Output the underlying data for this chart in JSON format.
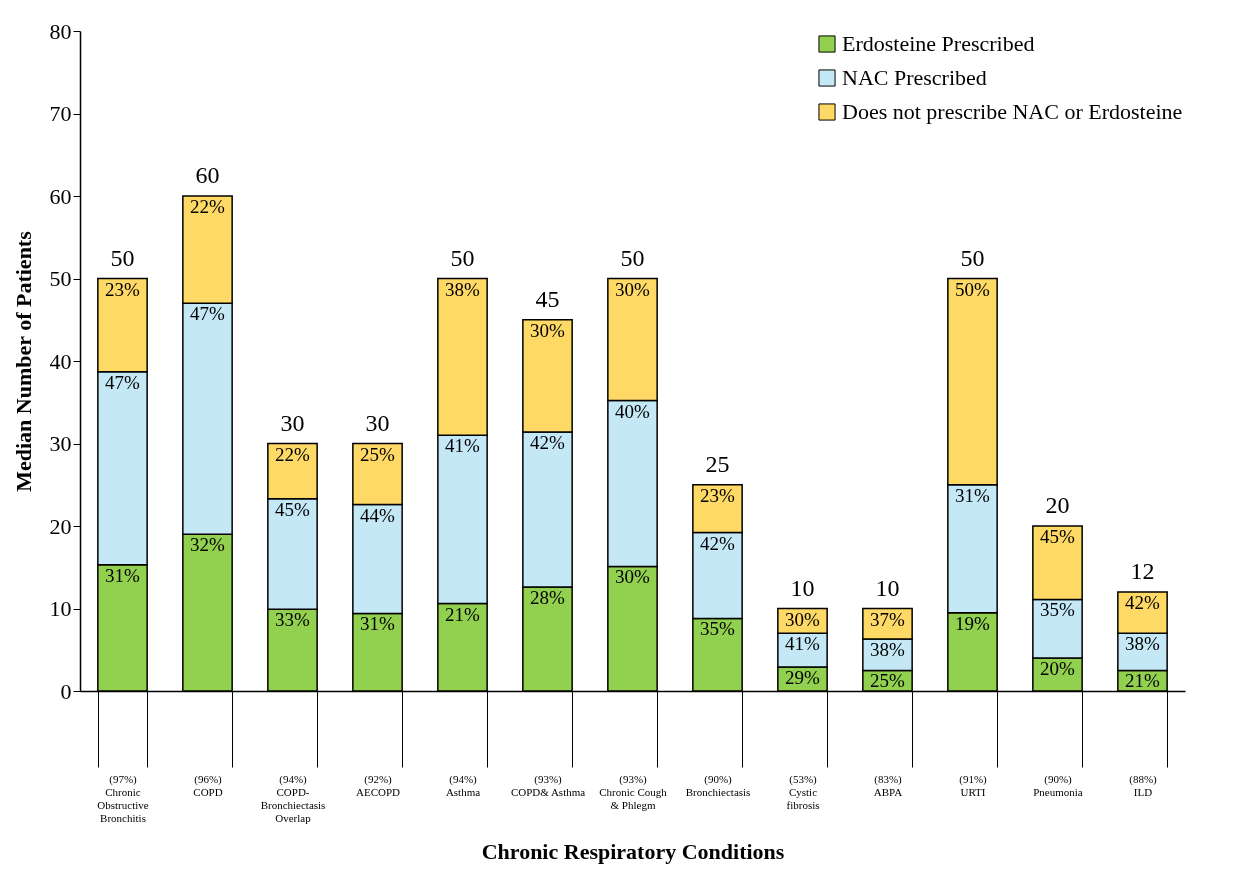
{
  "chart_data": {
    "type": "bar",
    "stacked": true,
    "xlabel": "Chronic Respiratory Conditions",
    "ylabel": "Median Number of Patients",
    "categories": [
      "(97%) Chronic Obstructive Bronchitis",
      "(96%) COPD",
      "(94%) COPD-Bronchiectasis Overlap",
      "(92%) AECOPD",
      "(94%) Asthma",
      "(93%) COPD& Asthma",
      "(93%) Chronic Cough & Phlegm",
      "(90%) Bronchiectasis",
      "(53%) Cystic fibrosis",
      "(83%) ABPA",
      "(91%) URTI",
      "(90%) Pneumonia",
      "(88%) ILD"
    ],
    "series": [
      {
        "name": "Erdosteine Prescribed",
        "color": "#92d050",
        "values": [
          15.3,
          19,
          9.9,
          9.4,
          10.6,
          12.6,
          15.1,
          8.8,
          2.9,
          2.5,
          9.5,
          4,
          2.5
        ]
      },
      {
        "name": "NAC Prescribed",
        "color": "#c5e8f7",
        "values": [
          23.4,
          28,
          13.4,
          13.2,
          20.4,
          18.8,
          20.1,
          10.4,
          4.1,
          3.8,
          15.5,
          7.1,
          4.5
        ]
      },
      {
        "name": "Does not prescribe NAC or Erdosteine",
        "color": "#ffd966",
        "values": [
          11.3,
          13,
          6.7,
          7.4,
          19,
          13.6,
          14.8,
          5.8,
          3,
          3.7,
          25,
          8.9,
          5
        ]
      }
    ],
    "annotations": [
      {
        "text": "31%",
        "x": "(97%) Chronic Obstructive Bronchitis",
        "y": 15.3
      },
      {
        "text": "47%",
        "x": "(97%) Chronic Obstructive Bronchitis",
        "y": 38.7
      },
      {
        "text": "23%",
        "x": "(97%) Chronic Obstructive Bronchitis",
        "y": 50
      },
      {
        "text": "32%",
        "x": "(96%) COPD",
        "y": 19
      },
      {
        "text": "47%",
        "x": "(96%) COPD",
        "y": 47
      },
      {
        "text": "22%",
        "x": "(96%) COPD",
        "y": 60
      },
      {
        "text": "33%",
        "x": "(94%) COPD-Bronchiectasis Overlap",
        "y": 9.9
      },
      {
        "text": "45%",
        "x": "(94%) COPD-Bronchiectasis Overlap",
        "y": 23.3
      },
      {
        "text": "22%",
        "x": "(94%) COPD-Bronchiectasis Overlap",
        "y": 30
      },
      {
        "text": "31%",
        "x": "(92%) AECOPD",
        "y": 9.4
      },
      {
        "text": "44%",
        "x": "(92%) AECOPD",
        "y": 22.6
      },
      {
        "text": "25%",
        "x": "(92%) AECOPD",
        "y": 30
      },
      {
        "text": "21%",
        "x": "(94%) Asthma",
        "y": 10.6
      },
      {
        "text": "41%",
        "x": "(94%) Asthma",
        "y": 31
      },
      {
        "text": "38%",
        "x": "(94%) Asthma",
        "y": 50
      },
      {
        "text": "28%",
        "x": "(93%) COPD& Asthma",
        "y": 12.6
      },
      {
        "text": "42%",
        "x": "(93%) COPD& Asthma",
        "y": 31.4
      },
      {
        "text": "30%",
        "x": "(93%) COPD& Asthma",
        "y": 45
      },
      {
        "text": "30%",
        "x": "(93%) Chronic Cough & Phlegm",
        "y": 15.1
      },
      {
        "text": "40%",
        "x": "(93%) Chronic Cough & Phlegm",
        "y": 35.2
      },
      {
        "text": "30%",
        "x": "(93%) Chronic Cough & Phlegm",
        "y": 50
      },
      {
        "text": "35%",
        "x": "(90%) Bronchiectasis",
        "y": 8.8
      },
      {
        "text": "42%",
        "x": "(90%) Bronchiectasis",
        "y": 19.2
      },
      {
        "text": "23%",
        "x": "(90%) Bronchiectasis",
        "y": 25
      },
      {
        "text": "29%",
        "x": "(53%) Cystic fibrosis",
        "y": 2.9
      },
      {
        "text": "41%",
        "x": "(53%) Cystic fibrosis",
        "y": 7
      },
      {
        "text": "30%",
        "x": "(53%) Cystic fibrosis",
        "y": 10
      },
      {
        "text": "25%",
        "x": "(83%) ABPA",
        "y": 2.5
      },
      {
        "text": "38%",
        "x": "(83%) ABPA",
        "y": 6.3
      },
      {
        "text": "37%",
        "x": "(83%) ABPA",
        "y": 10
      },
      {
        "text": "19%",
        "x": "(91%) URTI",
        "y": 9.5
      },
      {
        "text": "31%",
        "x": "(91%) URTI",
        "y": 25
      },
      {
        "text": "50%",
        "x": "(91%) URTI",
        "y": 50
      },
      {
        "text": "20%",
        "x": "(90%) Pneumonia",
        "y": 4
      },
      {
        "text": "35%",
        "x": "(90%) Pneumonia",
        "y": 11.1
      },
      {
        "text": "45%",
        "x": "(90%) Pneumonia",
        "y": 20
      },
      {
        "text": "21%",
        "x": "(88%) ILD",
        "y": 2.5
      },
      {
        "text": "38%",
        "x": "(88%) ILD",
        "y": 7
      },
      {
        "text": "42%",
        "x": "(88%) ILD",
        "y": 12
      }
    ],
    "totals": [
      "50",
      "60",
      "30",
      "30",
      "50",
      "45",
      "50",
      "25",
      "10",
      "10",
      "50",
      "20",
      "12"
    ],
    "ylim": [
      0,
      80
    ],
    "yticks": [
      0,
      10,
      20,
      30,
      40,
      50,
      60,
      70,
      80
    ],
    "grid": false,
    "legend": "top right"
  }
}
